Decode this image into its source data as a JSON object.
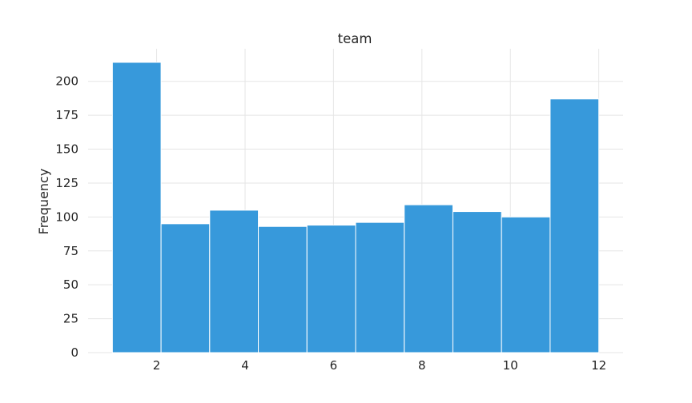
{
  "chart_data": {
    "type": "bar",
    "title": "team",
    "xlabel": "",
    "ylabel": "Frequency",
    "bins": [
      {
        "x0": 1.0,
        "x1": 2.1,
        "count": 214
      },
      {
        "x0": 2.1,
        "x1": 3.2,
        "count": 95
      },
      {
        "x0": 3.2,
        "x1": 4.3,
        "count": 105
      },
      {
        "x0": 4.3,
        "x1": 5.4,
        "count": 93
      },
      {
        "x0": 5.4,
        "x1": 6.5,
        "count": 94
      },
      {
        "x0": 6.5,
        "x1": 7.6,
        "count": 96
      },
      {
        "x0": 7.6,
        "x1": 8.7,
        "count": 109
      },
      {
        "x0": 8.7,
        "x1": 9.8,
        "count": 104
      },
      {
        "x0": 9.8,
        "x1": 10.9,
        "count": 100
      },
      {
        "x0": 10.9,
        "x1": 12.0,
        "count": 187
      }
    ],
    "xlim": [
      0.45,
      12.55
    ],
    "ylim": [
      0,
      224
    ],
    "xticks": [
      "2",
      "4",
      "6",
      "8",
      "10",
      "12"
    ],
    "yticks": [
      "0",
      "25",
      "50",
      "75",
      "100",
      "125",
      "150",
      "175",
      "200"
    ],
    "grid": true,
    "bar_color": "#3799db",
    "grid_color": "#e5e5e5"
  }
}
